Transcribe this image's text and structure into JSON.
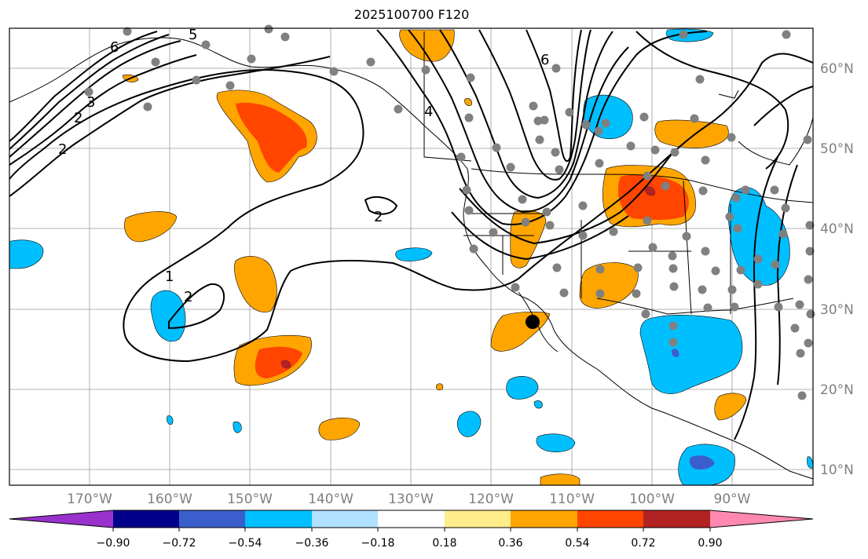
{
  "title": "2025100700 F120",
  "map": {
    "lon_labels": [
      "170°W",
      "160°W",
      "150°W",
      "140°W",
      "130°W",
      "120°W",
      "110°W",
      "100°W",
      "90°W"
    ],
    "lat_labels": [
      "60°N",
      "50°N",
      "40°N",
      "30°N",
      "20°N",
      "10°N"
    ],
    "contour_labels": [
      "1",
      "2",
      "2",
      "2",
      "2",
      "3",
      "4",
      "5",
      "6",
      "6"
    ]
  },
  "colorbar": {
    "colors": [
      "#9932cc",
      "#00008b",
      "#3a5fcd",
      "#00bfff",
      "#b0e2ff",
      "#ffffff",
      "#ffec8b",
      "#ffa500",
      "#ff4500",
      "#b22222",
      "#ff88b0"
    ],
    "tick_labels": [
      "−0.90",
      "−0.72",
      "−0.54",
      "−0.36",
      "−0.18",
      "0.18",
      "0.36",
      "0.54",
      "0.72",
      "0.90"
    ]
  },
  "legend_colors": {
    "contour": "#000000",
    "station_dot": "#808080",
    "grid": "#9a9a9a"
  }
}
